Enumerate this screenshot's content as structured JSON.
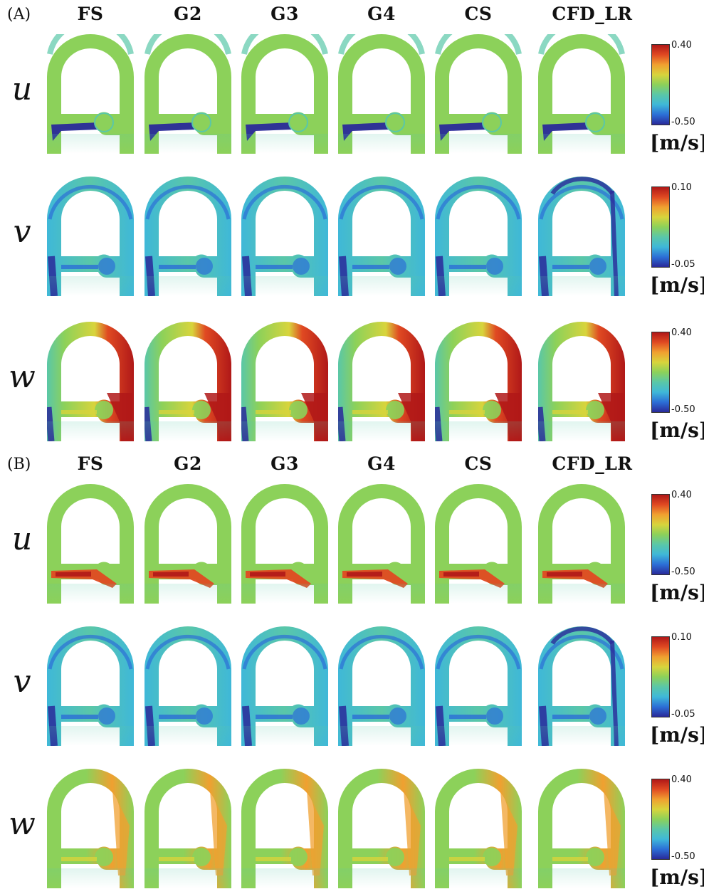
{
  "panels": [
    {
      "label": "(A)",
      "columns": [
        "FS",
        "G2",
        "G3",
        "G4",
        "CS",
        "CFD_LR"
      ],
      "rows": [
        {
          "name": "u",
          "max": "0.40",
          "min": "-0.50",
          "unit": "[m/s]",
          "pattern": "u_neg"
        },
        {
          "name": "v",
          "max": "0.10",
          "min": "-0.05",
          "unit": "[m/s]",
          "pattern": "v"
        },
        {
          "name": "w",
          "max": "0.40",
          "min": "-0.50",
          "unit": "[m/s]",
          "pattern": "w_strong"
        }
      ]
    },
    {
      "label": "(B)",
      "columns": [
        "FS",
        "G2",
        "G3",
        "G4",
        "CS",
        "CFD_LR"
      ],
      "rows": [
        {
          "name": "u",
          "max": "0.40",
          "min": "-0.50",
          "unit": "[m/s]",
          "pattern": "u_pos"
        },
        {
          "name": "v",
          "max": "0.10",
          "min": "-0.05",
          "unit": "[m/s]",
          "pattern": "v"
        },
        {
          "name": "w",
          "max": "0.40",
          "min": "-0.50",
          "unit": "[m/s]",
          "pattern": "w_mild"
        }
      ]
    }
  ],
  "colors": {
    "jet": [
      "#2a2a9a",
      "#2c6fd6",
      "#3fb8d8",
      "#5ac7a8",
      "#8cd15a",
      "#d8d43c",
      "#f0a030",
      "#e04a22",
      "#b01818"
    ],
    "outline": "#333333"
  }
}
